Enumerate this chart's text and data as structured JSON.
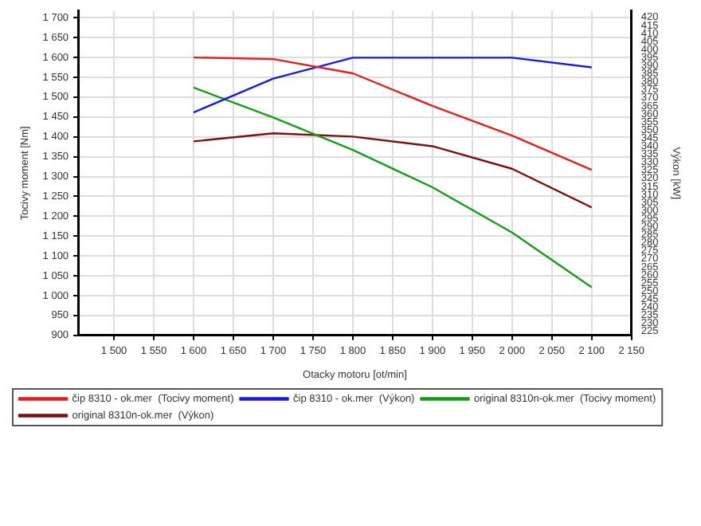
{
  "chart_data": {
    "type": "line",
    "xlabel": "Otacky motoru [ot/min]",
    "ylabel": "Tocivy moment [Nm]",
    "y2label": "Výkon [kW]",
    "x": [
      1600,
      1700,
      1800,
      1900,
      2000,
      2100
    ],
    "series": [
      {
        "name": "čip 8310 - ok.mer  (Tocivy moment)",
        "color": "#e02020",
        "values": [
          1600,
          1596,
          1560,
          1478,
          1403,
          1317
        ]
      },
      {
        "name": "čip 8310 - ok.mer  (Výkon)",
        "color": "#1a1ae0",
        "axis": "y2",
        "values": [
          361,
          382,
          395,
          395,
          395,
          389
        ]
      },
      {
        "name": "original 8310n-ok.mer  (Tocivy moment)",
        "color": "#1a9a1a",
        "values": [
          1524,
          1449,
          1367,
          1273,
          1159,
          1021
        ]
      },
      {
        "name": "original 8310n-ok.mer  (Výkon)",
        "color": "#7a1010",
        "axis": "y2",
        "values": [
          343,
          348,
          346,
          340,
          326,
          302
        ]
      }
    ],
    "xlim": [
      1455,
      2150
    ],
    "xticks": [
      {
        "value": 1500,
        "label": "1 500"
      },
      {
        "value": 1550,
        "label": "1 550"
      },
      {
        "value": 1600,
        "label": "1 600"
      },
      {
        "value": 1650,
        "label": "1 650"
      },
      {
        "value": 1700,
        "label": "1 700"
      },
      {
        "value": 1750,
        "label": "1 750"
      },
      {
        "value": 1800,
        "label": "1 800"
      },
      {
        "value": 1850,
        "label": "1 850"
      },
      {
        "value": 1900,
        "label": "1 900"
      },
      {
        "value": 1950,
        "label": "1 950"
      },
      {
        "value": 2000,
        "label": "2 000"
      },
      {
        "value": 2050,
        "label": "2 050"
      },
      {
        "value": 2100,
        "label": "2 100"
      },
      {
        "value": 2150,
        "label": "2 150"
      }
    ],
    "ylim": [
      900,
      1717
    ],
    "yticks": [
      900,
      950,
      {
        "value": 1000,
        "label": "1 000"
      },
      {
        "value": 1050,
        "label": "1 050"
      },
      {
        "value": 1100,
        "label": "1 100"
      },
      {
        "value": 1150,
        "label": "1 150"
      },
      {
        "value": 1200,
        "label": "1 200"
      },
      {
        "value": 1250,
        "label": "1 250"
      },
      {
        "value": 1300,
        "label": "1 300"
      },
      {
        "value": 1350,
        "label": "1 350"
      },
      {
        "value": 1400,
        "label": "1 400"
      },
      {
        "value": 1450,
        "label": "1 450"
      },
      {
        "value": 1500,
        "label": "1 500"
      },
      {
        "value": 1550,
        "label": "1 550"
      },
      {
        "value": 1600,
        "label": "1 600"
      },
      {
        "value": 1650,
        "label": "1 650"
      },
      {
        "value": 1700,
        "label": "1 700"
      }
    ],
    "y2lim": [
      222.5,
      424
    ],
    "y2ticks": [
      225,
      230,
      235,
      240,
      245,
      250,
      255,
      260,
      265,
      270,
      275,
      280,
      285,
      290,
      295,
      300,
      305,
      310,
      315,
      320,
      325,
      330,
      335,
      340,
      345,
      350,
      355,
      360,
      365,
      370,
      375,
      380,
      385,
      390,
      395,
      400,
      405,
      410,
      415,
      420
    ],
    "grid": true,
    "legend": "bottom",
    "marker": "none",
    "line_style": "solid"
  }
}
